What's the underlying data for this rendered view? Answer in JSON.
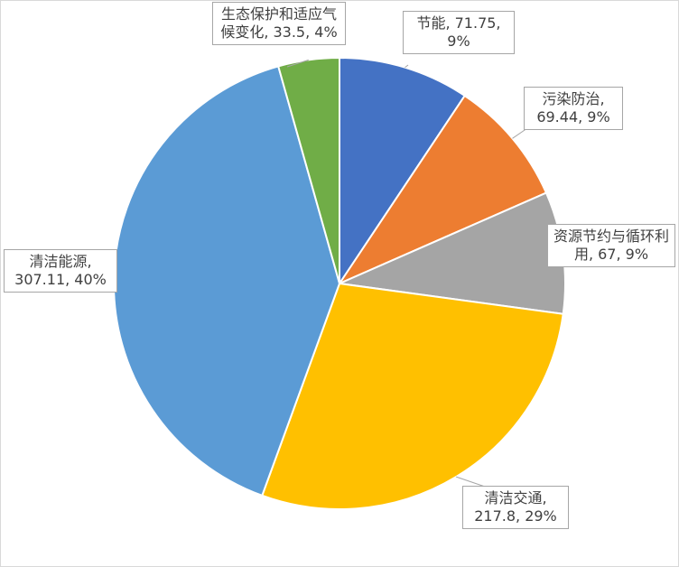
{
  "chart_data": {
    "type": "pie",
    "title": "",
    "slices": [
      {
        "name": "节能",
        "value": 71.75,
        "percent": "9%",
        "color": "#4472C4"
      },
      {
        "name": "污染防治",
        "value": 69.44,
        "percent": "9%",
        "color": "#ED7D31"
      },
      {
        "name": "资源节约与循环利用",
        "value": 67,
        "percent": "9%",
        "color": "#A5A5A5"
      },
      {
        "name": "清洁交通",
        "value": 217.8,
        "percent": "29%",
        "color": "#FFC000"
      },
      {
        "name": "清洁能源",
        "value": 307.11,
        "percent": "40%",
        "color": "#5B9BD5"
      },
      {
        "name": "生态保护和适应气候变化",
        "value": 33.5,
        "percent": "4%",
        "color": "#70AD47"
      }
    ],
    "labels": [
      {
        "text": "节能, 71.75, 9%"
      },
      {
        "text": "污染防治, 69.44, 9%"
      },
      {
        "text": "资源节约与循环利用, 67, 9%"
      },
      {
        "text": "清洁交通, 217.8, 29%"
      },
      {
        "text": "清洁能源, 307.11, 40%"
      },
      {
        "text": "生态保护和适应气候变化, 33.5, 4%"
      }
    ],
    "legend": "none",
    "start_angle": "top, clockwise"
  }
}
